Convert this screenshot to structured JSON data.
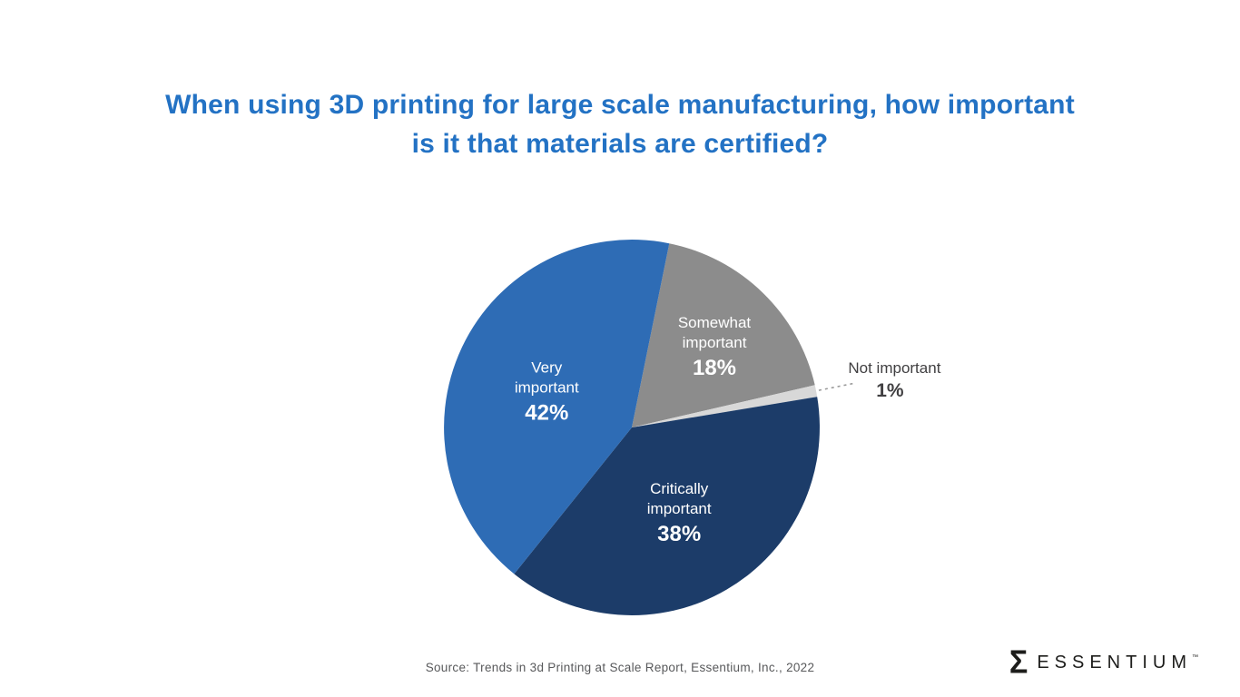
{
  "slide": {
    "title": "When using 3D printing for large scale manufacturing, how important is it that materials are certified?",
    "title_lines": [
      "When using 3D printing for large scale manufacturing, how important",
      "is it that materials are certified?"
    ],
    "source": "Source: Trends in 3d Printing at Scale Report, Essentium, Inc., 2022",
    "logo": {
      "mark": "Σ",
      "text": "ESSENTIUM",
      "tm": "™"
    }
  },
  "colors": {
    "title_blue": "#2372c4",
    "background": "#ffffff",
    "outside_label": "#414042",
    "leader_line": "#999999",
    "source_gray": "#58595b",
    "logo_dark": "#1d1d1b",
    "inside_label": "#ffffff"
  },
  "chart_data": {
    "type": "pie",
    "title": "When using 3D printing for large scale manufacturing, how important is it that materials are certified?",
    "unit": "%",
    "order": "clockwise",
    "rotation_deg": 11.5,
    "legend_position": "none",
    "labels_on_slices": true,
    "slices": [
      {
        "label": "Somewhat important",
        "value": 18,
        "color": "#8c8c8c",
        "label_style": "inside",
        "label_radius": 0.63
      },
      {
        "label": "Not important",
        "value": 1,
        "color": "#d8d8d8",
        "label_style": "outside",
        "label_radius": 1.41
      },
      {
        "label": "Critically important",
        "value": 38,
        "color": "#1c3c69",
        "label_style": "inside",
        "label_radius": 0.5
      },
      {
        "label": "Very important",
        "value": 42,
        "color": "#2e6cb5",
        "label_style": "inside",
        "label_radius": 0.5
      }
    ]
  }
}
